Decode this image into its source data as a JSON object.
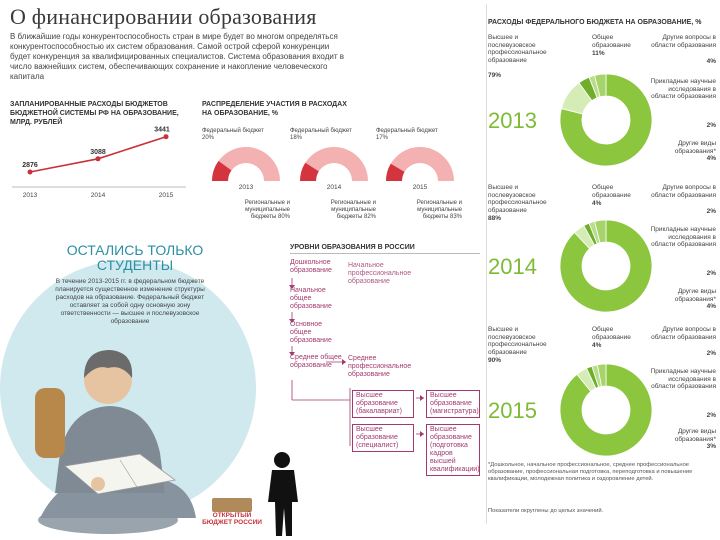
{
  "title": "О финансировании образования",
  "intro": "В ближайшие годы конкурентоспособность стран в мире будет во многом определяться конкурентоспособностью их систем образования. Самой острой сферой конкуренции будет конкуренция за квалифицированных специалистов. Система образования входит в число важнейших систем, обеспечивающих сохранение и накопление человеческого капитала",
  "planned": {
    "heading": "ЗАПЛАНИРОВАННЫЕ РАСХОДЫ БЮДЖЕТОВ БЮДЖЕТНОЙ СИСТЕМЫ РФ НА ОБРАЗОВАНИЕ, МЛРД. РУБЛЕЙ",
    "years": [
      "2013",
      "2014",
      "2015"
    ],
    "values": [
      "2876",
      "3088",
      "3441"
    ],
    "accent": "#c8323a"
  },
  "distribution": {
    "heading": "РАСПРЕДЕЛЕНИЕ УЧАСТИЯ В РАСХОДАХ НА ОБРАЗОВАНИЕ, %",
    "gauges": [
      {
        "federal": "Федеральный бюджет 20%",
        "regional": "Региональные и муниципальные бюджеты 80%",
        "year": "2013",
        "federal_share": 20
      },
      {
        "federal": "Федеральный бюджет 18%",
        "regional": "Региональные и муниципальные бюджеты 82%",
        "year": "2014",
        "federal_share": 18
      },
      {
        "federal": "Федеральный бюджет 17%",
        "regional": "Региональные и муниципальные бюджеты 83%",
        "year": "2015",
        "federal_share": 17
      }
    ]
  },
  "students": {
    "heading": "ОСТАЛИСЬ ТОЛЬКО СТУДЕНТЫ",
    "text": "В течение 2013-2015 гг. в федеральном бюджете планируется существенное изменение структуры расходов на образование. Федеральный бюджет оставляет за собой одну основную зону ответственности — высшее и послевузовское образование"
  },
  "levels": {
    "heading": "УРОВНИ ОБРАЗОВАНИЯ В РОССИИ",
    "items": [
      "Дошкольное образование",
      "Начальное общее образование",
      "Основное общее образование",
      "Среднее общее образование"
    ],
    "prof_start": "Начальное профессиональное образование",
    "prof_mid": "Среднее профессиональное образование",
    "bachelor": "Высшее образование (бакалавриат)",
    "master": "Высшее образование (магистратура)",
    "specialist": "Высшее образование (специалист)",
    "postgrad": "Высшее образование (подготовка кадров высшей квалификации)"
  },
  "logo": {
    "text": "ОТКРЫТЫЙ БЮДЖЕТ РОССИИ"
  },
  "federal_spending": {
    "heading": "РАСХОДЫ ФЕДЕРАЛЬНОГО БЮДЖЕТА НА ОБРАЗОВАНИЕ, %",
    "years": [
      {
        "year": "2013",
        "higher": "Высшее и послевузовское профессиональное образование",
        "higher_pct": "79%",
        "general": "Общее образование",
        "general_pct": "11%",
        "other_q": "Другие вопросы в области образования",
        "other_q_pct": "4%",
        "applied": "Прикладные научные исследования в области образования",
        "applied_pct": "2%",
        "other_types": "Другие виды образования*",
        "other_types_pct": "4%",
        "shares": [
          79,
          11,
          4,
          2,
          4
        ]
      },
      {
        "year": "2014",
        "higher": "Высшее и послевузовское профессиональное образование",
        "higher_pct": "88%",
        "general": "Общее образование",
        "general_pct": "4%",
        "other_q": "Другие вопросы в области образования",
        "other_q_pct": "2%",
        "applied": "Прикладные научные исследования в области образования",
        "applied_pct": "2%",
        "other_types": "Другие виды образования*",
        "other_types_pct": "4%",
        "shares": [
          88,
          4,
          2,
          2,
          4
        ]
      },
      {
        "year": "2015",
        "higher": "Высшее и послевузовское профессиональное образование",
        "higher_pct": "90%",
        "general": "Общее образование",
        "general_pct": "4%",
        "other_q": "Другие вопросы в области образования",
        "other_q_pct": "2%",
        "applied": "Прикладные научные исследования в области образования",
        "applied_pct": "2%",
        "other_types": "Другие виды образования*",
        "other_types_pct": "3%",
        "shares": [
          90,
          4,
          2,
          2,
          3
        ]
      }
    ],
    "footnote": "*Дошкольное, начальное профессиональное, среднее профессиональное образование, профессиональная подготовка, переподготовка и повышение квалификации, молодежная политика и оздоровление детей.",
    "footnote2": "Показатели округлены до целых значений.",
    "accent": "#8cc63f"
  }
}
